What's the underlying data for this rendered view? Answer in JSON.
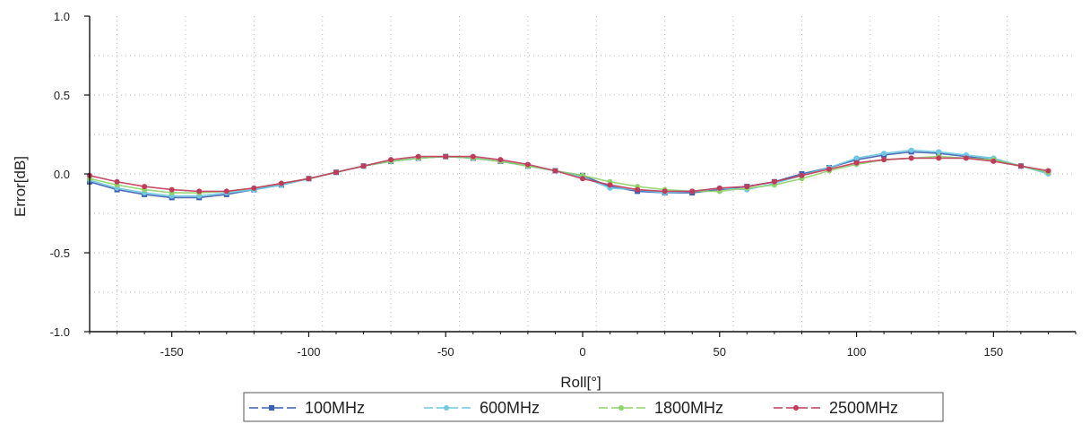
{
  "chart_data": {
    "type": "line",
    "title": "",
    "xlabel": "Roll[°]",
    "ylabel": "Error[dB]",
    "xlim": [
      -180,
      180
    ],
    "ylim": [
      -1.0,
      1.0
    ],
    "xticks": [
      -150,
      -100,
      -50,
      0,
      50,
      100,
      150
    ],
    "yticks": [
      -1.0,
      -0.5,
      0.0,
      0.5,
      1.0
    ],
    "ytick_labels": [
      "-1.0",
      "-0.5",
      "0.0",
      "0.5",
      "1.0"
    ],
    "grid": true,
    "legend_position": "bottom",
    "x": [
      -180,
      -170,
      -160,
      -150,
      -140,
      -130,
      -120,
      -110,
      -100,
      -90,
      -80,
      -70,
      -60,
      -50,
      -40,
      -30,
      -20,
      -10,
      0,
      10,
      20,
      30,
      40,
      50,
      60,
      70,
      80,
      90,
      100,
      110,
      120,
      130,
      140,
      150,
      160,
      170
    ],
    "series": [
      {
        "name": "100MHz",
        "color": "#3b5fb5",
        "marker": "square",
        "values": [
          -0.05,
          -0.1,
          -0.13,
          -0.15,
          -0.15,
          -0.13,
          -0.1,
          -0.07,
          -0.03,
          0.01,
          0.05,
          0.08,
          0.1,
          0.11,
          0.1,
          0.08,
          0.05,
          0.02,
          -0.01,
          -0.08,
          -0.11,
          -0.12,
          -0.12,
          -0.1,
          -0.08,
          -0.05,
          0.0,
          0.04,
          0.09,
          0.12,
          0.14,
          0.13,
          0.11,
          0.09,
          0.05,
          0.01
        ]
      },
      {
        "name": "600MHz",
        "color": "#6cc9e0",
        "marker": "circle",
        "values": [
          -0.04,
          -0.09,
          -0.12,
          -0.14,
          -0.14,
          -0.12,
          -0.1,
          -0.07,
          -0.03,
          0.01,
          0.05,
          0.08,
          0.1,
          0.11,
          0.1,
          0.08,
          0.05,
          0.02,
          -0.02,
          -0.09,
          -0.1,
          -0.12,
          -0.11,
          -0.09,
          -0.1,
          -0.06,
          -0.01,
          0.04,
          0.1,
          0.13,
          0.15,
          0.14,
          0.12,
          0.1,
          0.05,
          0.0
        ]
      },
      {
        "name": "1800MHz",
        "color": "#8fd36a",
        "marker": "circle",
        "values": [
          -0.03,
          -0.07,
          -0.1,
          -0.12,
          -0.12,
          -0.11,
          -0.09,
          -0.06,
          -0.03,
          0.01,
          0.05,
          0.08,
          0.1,
          0.11,
          0.1,
          0.08,
          0.05,
          0.02,
          -0.01,
          -0.05,
          -0.08,
          -0.1,
          -0.11,
          -0.11,
          -0.09,
          -0.07,
          -0.03,
          0.02,
          0.06,
          0.09,
          0.1,
          0.11,
          0.1,
          0.09,
          0.05,
          0.01
        ]
      },
      {
        "name": "2500MHz",
        "color": "#c23a5a",
        "marker": "circle",
        "values": [
          -0.01,
          -0.05,
          -0.08,
          -0.1,
          -0.11,
          -0.11,
          -0.09,
          -0.06,
          -0.03,
          0.01,
          0.05,
          0.09,
          0.11,
          0.11,
          0.11,
          0.09,
          0.06,
          0.02,
          -0.03,
          -0.07,
          -0.1,
          -0.11,
          -0.11,
          -0.09,
          -0.08,
          -0.05,
          -0.01,
          0.03,
          0.07,
          0.09,
          0.1,
          0.1,
          0.1,
          0.08,
          0.05,
          0.02
        ]
      }
    ]
  }
}
